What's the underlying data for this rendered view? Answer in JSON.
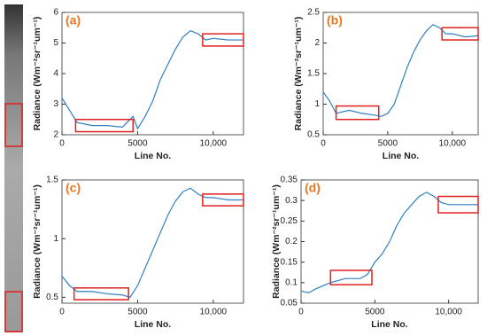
{
  "chart_data": [
    {
      "type": "line",
      "panel_label": "(a)",
      "xlabel": "Line No.",
      "ylabel": "Radiance (Wm⁻²sr⁻¹um⁻¹)",
      "xlim": [
        0,
        12000
      ],
      "xticks": [
        0,
        5000,
        {
          "value": 10000,
          "label": "10,000"
        }
      ],
      "ylim": [
        2,
        6
      ],
      "yticks": [
        2,
        3,
        4,
        5,
        6
      ],
      "series": [
        {
          "color": "#2f7fc1",
          "x": [
            0,
            500,
            1000,
            2000,
            3000,
            4000,
            4700,
            5000,
            5500,
            6000,
            6500,
            7000,
            7500,
            8000,
            8500,
            9000,
            9500,
            10000,
            11000,
            12000
          ],
          "values": [
            3.2,
            2.8,
            2.4,
            2.3,
            2.3,
            2.25,
            2.6,
            2.2,
            2.6,
            3.1,
            3.8,
            4.3,
            4.8,
            5.2,
            5.4,
            5.3,
            5.1,
            5.15,
            5.1,
            5.1
          ]
        }
      ],
      "highlights": [
        {
          "x": [
            900,
            4700
          ],
          "y": [
            2.1,
            2.5
          ]
        },
        {
          "x": [
            9300,
            12000
          ],
          "y": [
            4.9,
            5.3
          ]
        }
      ],
      "highlight_color": "#e02020"
    },
    {
      "type": "line",
      "panel_label": "(b)",
      "xlabel": "Line No.",
      "ylabel": "Radiance (Wm⁻²sr⁻¹um⁻¹)",
      "xlim": [
        0,
        12000
      ],
      "xticks": [
        0,
        5000,
        {
          "value": 10000,
          "label": "10,000"
        }
      ],
      "ylim": [
        0.5,
        2.5
      ],
      "yticks": [
        0.5,
        1,
        1.5,
        2,
        2.5
      ],
      "series": [
        {
          "color": "#2f7fc1",
          "x": [
            0,
            500,
            1000,
            2000,
            3000,
            4000,
            4500,
            5000,
            5500,
            6000,
            6500,
            7000,
            7500,
            8000,
            8500,
            9000,
            9500,
            10000,
            11000,
            12000
          ],
          "values": [
            1.2,
            1.05,
            0.85,
            0.9,
            0.85,
            0.82,
            0.8,
            0.85,
            1.0,
            1.3,
            1.6,
            1.85,
            2.05,
            2.2,
            2.3,
            2.25,
            2.15,
            2.15,
            2.1,
            2.12
          ]
        }
      ],
      "highlights": [
        {
          "x": [
            1000,
            4300
          ],
          "y": [
            0.75,
            0.97
          ]
        },
        {
          "x": [
            9200,
            12000
          ],
          "y": [
            2.05,
            2.25
          ]
        }
      ],
      "highlight_color": "#e02020"
    },
    {
      "type": "line",
      "panel_label": "(c)",
      "xlabel": "Line No.",
      "ylabel": "Radiance (Wm⁻²sr⁻¹um⁻¹)",
      "xlim": [
        0,
        12000
      ],
      "xticks": [
        0,
        5000,
        {
          "value": 10000,
          "label": "10,000"
        }
      ],
      "ylim": [
        0.45,
        1.5
      ],
      "yticks": [
        0.5,
        1,
        1.5
      ],
      "series": [
        {
          "color": "#2f7fc1",
          "x": [
            0,
            500,
            1000,
            2000,
            3000,
            4000,
            4500,
            5000,
            5500,
            6000,
            6500,
            7000,
            7500,
            8000,
            8500,
            9000,
            9500,
            10000,
            11000,
            12000
          ],
          "values": [
            0.68,
            0.6,
            0.55,
            0.55,
            0.53,
            0.52,
            0.5,
            0.6,
            0.75,
            0.9,
            1.05,
            1.2,
            1.32,
            1.4,
            1.43,
            1.38,
            1.35,
            1.35,
            1.33,
            1.33
          ]
        }
      ],
      "highlights": [
        {
          "x": [
            800,
            4400
          ],
          "y": [
            0.48,
            0.58
          ]
        },
        {
          "x": [
            9300,
            12000
          ],
          "y": [
            1.28,
            1.38
          ]
        }
      ],
      "highlight_color": "#e02020"
    },
    {
      "type": "line",
      "panel_label": "(d)",
      "xlabel": "Line No.",
      "ylabel": "Radiance (Wm⁻²sr⁻¹um⁻¹)",
      "xlim": [
        0,
        12000
      ],
      "xticks": [
        0,
        5000,
        {
          "value": 10000,
          "label": "10,000"
        }
      ],
      "ylim": [
        0.05,
        0.35
      ],
      "yticks": [
        0.05,
        0.1,
        0.15,
        0.2,
        0.25,
        0.3,
        0.35
      ],
      "series": [
        {
          "color": "#2f7fc1",
          "x": [
            0,
            500,
            1000,
            2000,
            3000,
            4000,
            4500,
            5000,
            5500,
            6000,
            6500,
            7000,
            7500,
            8000,
            8500,
            9000,
            9500,
            10000,
            11000,
            12000
          ],
          "values": [
            0.08,
            0.075,
            0.085,
            0.1,
            0.11,
            0.11,
            0.12,
            0.15,
            0.17,
            0.2,
            0.24,
            0.27,
            0.29,
            0.31,
            0.32,
            0.31,
            0.295,
            0.29,
            0.29,
            0.29
          ]
        }
      ],
      "highlights": [
        {
          "x": [
            2000,
            4800
          ],
          "y": [
            0.095,
            0.13
          ]
        },
        {
          "x": [
            9300,
            12000
          ],
          "y": [
            0.27,
            0.31
          ]
        }
      ],
      "highlight_color": "#e02020"
    }
  ]
}
